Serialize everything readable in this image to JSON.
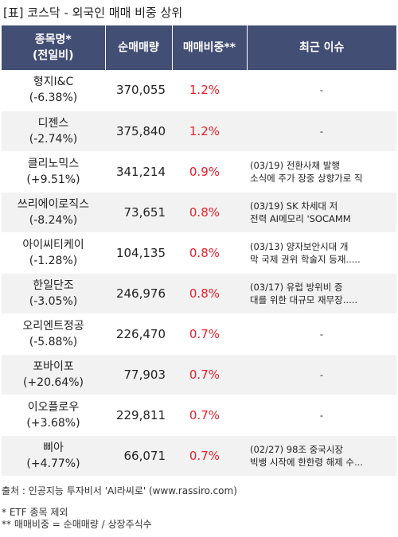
{
  "title": "[표] 코스닥 - 외국인 매매 비중 상위",
  "table": {
    "headers": {
      "name_line1": "종목명*",
      "name_line2": "(전일비)",
      "volume": "순매매량",
      "ratio": "매매비중**",
      "issue": "최근 이슈"
    },
    "rows": [
      {
        "name": "형지I&C",
        "change": "(-6.38%)",
        "volume": "370,055",
        "ratio": "1.2%",
        "issue1": "-",
        "issue2": ""
      },
      {
        "name": "디젠스",
        "change": "(-2.74%)",
        "volume": "375,840",
        "ratio": "1.2%",
        "issue1": "-",
        "issue2": ""
      },
      {
        "name": "클리노믹스",
        "change": "(+9.51%)",
        "volume": "341,214",
        "ratio": "0.9%",
        "issue1": "(03/19) 전환사채 발행",
        "issue2": "소식에 주가 장중 상향가로 직"
      },
      {
        "name": "쓰리에이로직스",
        "change": "(-8.24%)",
        "volume": "73,651",
        "ratio": "0.8%",
        "issue1": "(03/19) SK 차세대 저",
        "issue2": "전력 AI메모리 'SOCAMM"
      },
      {
        "name": "아이씨티케이",
        "change": "(-1.28%)",
        "volume": "104,135",
        "ratio": "0.8%",
        "issue1": "(03/13) 양자보안시대 개",
        "issue2": "막 국제 권위 학술지 등재....."
      },
      {
        "name": "한일단조",
        "change": "(-3.05%)",
        "volume": "246,976",
        "ratio": "0.8%",
        "issue1": "(03/17) 유럽 방위비 증",
        "issue2": "대를 위한 대규모 재무장....."
      },
      {
        "name": "오리엔트정공",
        "change": "(-5.88%)",
        "volume": "226,470",
        "ratio": "0.7%",
        "issue1": "-",
        "issue2": ""
      },
      {
        "name": "포바이포",
        "change": "(+20.64%)",
        "volume": "77,903",
        "ratio": "0.7%",
        "issue1": "-",
        "issue2": ""
      },
      {
        "name": "이오플로우",
        "change": "(+3.68%)",
        "volume": "229,811",
        "ratio": "0.7%",
        "issue1": "-",
        "issue2": ""
      },
      {
        "name": "삐아",
        "change": "(+4.77%)",
        "volume": "66,071",
        "ratio": "0.7%",
        "issue1": "(02/27) 98조 중국시장",
        "issue2": " 빅뱅 시작에 한한령 해제 수..."
      }
    ]
  },
  "footer": {
    "source": "출처 : 인공지능 투자비서 'AI라씨로' (www.rassiro.com)",
    "note1": "* ETF 종목 제외",
    "note2": "** 매매비중 = 순매매량 / 상장주식수"
  },
  "colors": {
    "header_bg": "#434e74",
    "ratio_text": "#e8202a",
    "row_alt_bg": "#f2f2f2"
  }
}
